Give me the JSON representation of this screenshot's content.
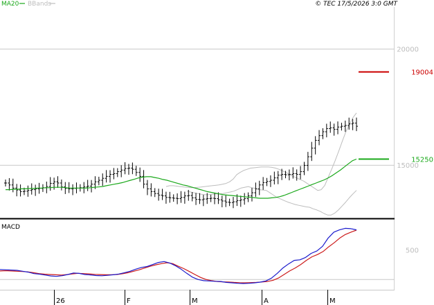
{
  "header": {
    "legend_ma": "MA20",
    "legend_bb": "BBands",
    "copyright": "© TEC 17/5/2026 3:0 GMT"
  },
  "colors": {
    "price": "#000000",
    "ma": "#1aa81a",
    "bbands": "#bdbdbd",
    "resistance": "#cc0000",
    "support": "#1aa81a",
    "macd": "#1a1acc",
    "signal": "#cc1a1a",
    "grid": "#c8c8c8",
    "axis_text": "#bdbdbd"
  },
  "chart_data": [
    {
      "type": "ohlc",
      "name": "price-panel",
      "y_ticks": [
        "20000",
        "15000"
      ],
      "ylim": [
        12700,
        21800
      ],
      "levels": [
        {
          "label": "19004",
          "value": 19004,
          "kind": "resistance"
        },
        {
          "label": "15250",
          "value": 15250,
          "kind": "support"
        }
      ],
      "x_labels": [
        "26",
        "F",
        "M",
        "A",
        "M"
      ],
      "series": [
        {
          "name": "Close",
          "values": [
            14222,
            14138,
            14003,
            13919,
            13852,
            13869,
            13902,
            13936,
            13970,
            13987,
            14020,
            14071,
            14205,
            14273,
            14222,
            14053,
            13987,
            13970,
            13987,
            14003,
            14020,
            14053,
            14087,
            14171,
            14273,
            14340,
            14424,
            14508,
            14593,
            14627,
            14711,
            14778,
            14846,
            14863,
            14813,
            14677,
            14509,
            14172,
            13970,
            13852,
            13768,
            13701,
            13667,
            13600,
            13583,
            13566,
            13549,
            13600,
            13667,
            13684,
            13583,
            13515,
            13498,
            13532,
            13549,
            13566,
            13549,
            13498,
            13447,
            13397,
            13380,
            13414,
            13465,
            13498,
            13549,
            13667,
            13802,
            13970,
            14138,
            14239,
            14289,
            14340,
            14441,
            14559,
            14593,
            14576,
            14593,
            14627,
            14593,
            14711,
            14981,
            15351,
            15722,
            16058,
            16260,
            16428,
            16563,
            16597,
            16530,
            16631,
            16664,
            16698,
            16765,
            16799,
            16664
          ]
        },
        {
          "name": "MA20",
          "values": [
            13936,
            13936,
            13953,
            13953,
            13970,
            13970,
            13987,
            13987,
            14003,
            14003,
            14020,
            14020,
            14037,
            14037,
            14037,
            14020,
            14003,
            14003,
            14003,
            14003,
            14003,
            14020,
            14037,
            14053,
            14070,
            14104,
            14138,
            14171,
            14205,
            14239,
            14289,
            14340,
            14390,
            14441,
            14475,
            14492,
            14492,
            14458,
            14424,
            14374,
            14340,
            14289,
            14239,
            14188,
            14138,
            14104,
            14053,
            14003,
            13953,
            13902,
            13852,
            13818,
            13785,
            13751,
            13717,
            13700,
            13684,
            13667,
            13650,
            13634,
            13617,
            13600,
            13583,
            13566,
            13566,
            13566,
            13583,
            13600,
            13634,
            13684,
            13751,
            13818,
            13886,
            13953,
            14020,
            14087,
            14155,
            14222,
            14289,
            14356,
            14441,
            14542,
            14660,
            14778,
            14913,
            15048,
            15182,
            15250
          ]
        },
        {
          "name": "BBands upper",
          "values": [
            14070,
            14104,
            14104,
            14087,
            14070,
            14053,
            14037,
            14020,
            14020,
            14037,
            14053,
            14070,
            14087,
            14104,
            14121,
            14138,
            14171,
            14205,
            14272,
            14390,
            14576,
            14677,
            14761,
            14812,
            14862,
            14879,
            14896,
            14912,
            14912,
            14912,
            14895,
            14862,
            14812,
            14744,
            14677,
            14593,
            14508,
            14441,
            14374,
            14306,
            14205,
            14104,
            14003,
            13902,
            13936,
            14121,
            14475,
            14829,
            15199,
            15603,
            16024,
            16428,
            16732,
            17036,
            17238
          ]
        },
        {
          "name": "BBands lower",
          "values": [
            13869,
            13835,
            13801,
            13768,
            13734,
            13717,
            13717,
            13734,
            13751,
            13751,
            13768,
            13802,
            13835,
            13869,
            13936,
            14003,
            14037,
            14070,
            14020,
            13986,
            13936,
            13919,
            13902,
            13802,
            13700,
            13599,
            13532,
            13465,
            13397,
            13346,
            13296,
            13262,
            13229,
            13195,
            13178,
            13111,
            13061,
            12994,
            12910,
            12842,
            12842,
            12926,
            13060,
            13229,
            13397,
            13583,
            13750,
            13902
          ]
        }
      ]
    },
    {
      "type": "line",
      "name": "MACD",
      "title": "MACD",
      "y_ticks": [
        "500"
      ],
      "ylim": [
        -180,
        1000
      ],
      "x_labels": [
        "26",
        "F",
        "M",
        "A",
        "M"
      ],
      "series": [
        {
          "name": "MACD",
          "values": [
            165,
            160,
            155,
            150,
            135,
            120,
            95,
            85,
            70,
            55,
            48,
            60,
            80,
            105,
            98,
            80,
            72,
            62,
            58,
            66,
            75,
            88,
            110,
            135,
            170,
            200,
            215,
            250,
            285,
            300,
            275,
            230,
            170,
            100,
            35,
            -5,
            -25,
            -30,
            -36,
            -40,
            -55,
            -62,
            -70,
            -74,
            -70,
            -62,
            -50,
            -30,
            20,
            100,
            190,
            260,
            320,
            330,
            370,
            440,
            480,
            560,
            700,
            800,
            840,
            865,
            860,
            840
          ]
        },
        {
          "name": "Signal",
          "values": [
            140,
            145,
            140,
            135,
            130,
            125,
            110,
            95,
            85,
            80,
            75,
            70,
            78,
            90,
            100,
            95,
            90,
            82,
            78,
            75,
            75,
            80,
            92,
            110,
            135,
            160,
            190,
            220,
            245,
            265,
            280,
            265,
            220,
            180,
            130,
            80,
            30,
            -5,
            -25,
            -40,
            -45,
            -48,
            -55,
            -60,
            -62,
            -58,
            -55,
            -48,
            -40,
            -20,
            20,
            80,
            140,
            190,
            250,
            320,
            380,
            420,
            470,
            550,
            620,
            700,
            760,
            800,
            835
          ]
        }
      ]
    }
  ]
}
